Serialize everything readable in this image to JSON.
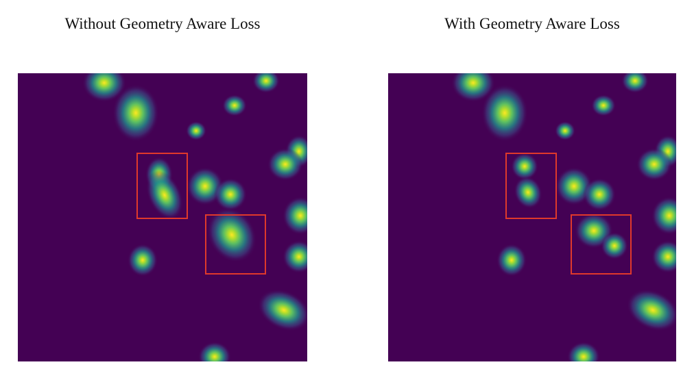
{
  "figure": {
    "left_panel": {
      "title": "Without Geometry Aware Loss"
    },
    "right_panel": {
      "title": "With Geometry Aware Loss"
    },
    "colors": {
      "background": "#440154",
      "colormap": [
        "#440154",
        "#3b528b",
        "#21918c",
        "#5ec962",
        "#fde725"
      ],
      "highlight_box": "#e0392b"
    }
  }
}
